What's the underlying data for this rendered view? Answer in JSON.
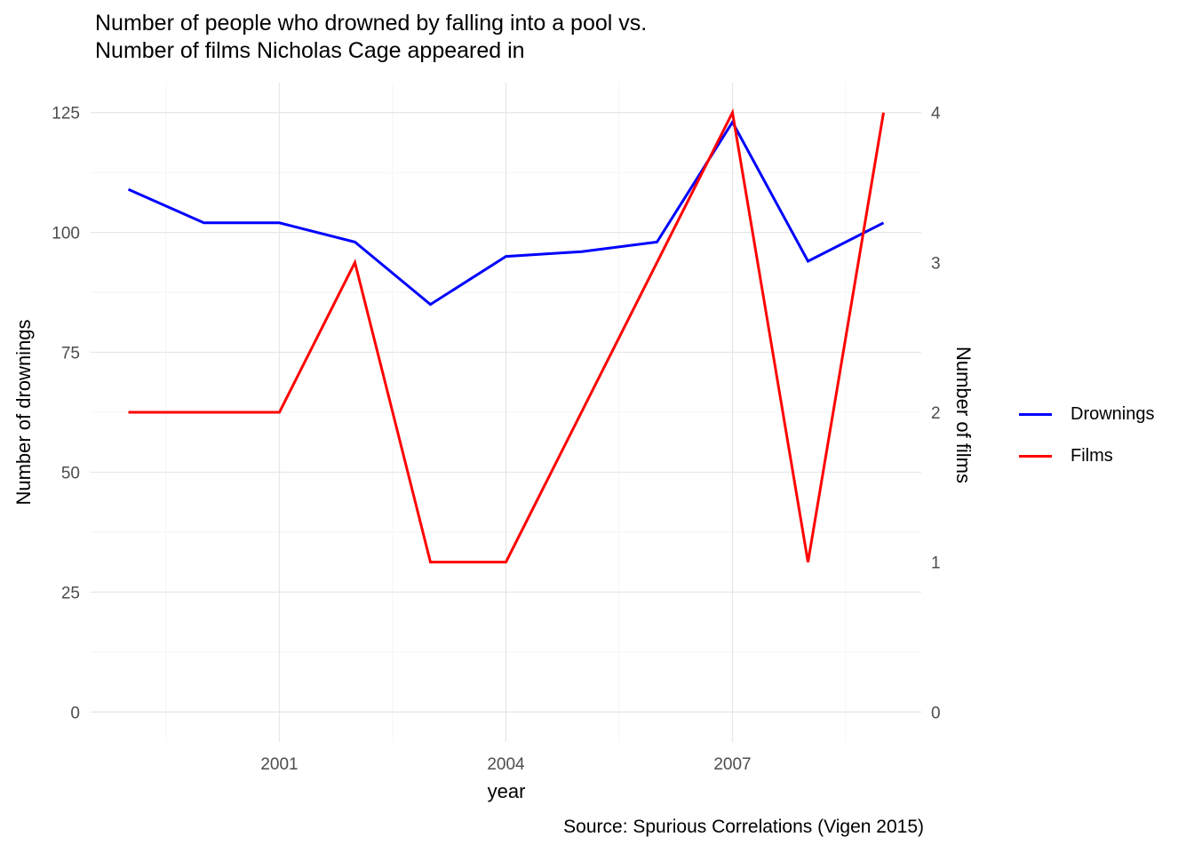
{
  "chart_data": {
    "type": "line",
    "title_lines": [
      "Number of people who drowned by falling into a pool vs.",
      "Number of films Nicholas Cage appeared in"
    ],
    "xlabel": "year",
    "ylabel_left": "Number of drownings",
    "ylabel_right": "Number of films",
    "caption": "Source: Spurious Correlations (Vigen 2015)",
    "x": [
      1999,
      2000,
      2001,
      2002,
      2003,
      2004,
      2005,
      2006,
      2007,
      2008,
      2009
    ],
    "series": [
      {
        "name": "Drownings",
        "axis": "left",
        "color": "#0000ff",
        "values": [
          109,
          102,
          102,
          98,
          85,
          95,
          96,
          98,
          123,
          94,
          102
        ]
      },
      {
        "name": "Films",
        "axis": "right",
        "color": "#ff0000",
        "values": [
          2,
          2,
          2,
          3,
          1,
          1,
          2,
          3,
          4,
          1,
          4
        ]
      }
    ],
    "x_ticks": [
      2001,
      2004,
      2007
    ],
    "x_minor_ticks": [
      1999.5,
      2002.5,
      2005.5,
      2008.5
    ],
    "y_left": {
      "lim": [
        0,
        125
      ],
      "ticks": [
        0,
        25,
        50,
        75,
        100,
        125
      ],
      "minor_ticks": [
        12.5,
        37.5,
        62.5,
        87.5,
        112.5
      ]
    },
    "y_right": {
      "lim": [
        0,
        4
      ],
      "ticks": [
        0,
        1,
        2,
        3,
        4
      ]
    },
    "grid": true,
    "legend_position": "right",
    "background": "#ffffff",
    "tick_text_color": "#4d4d4d"
  }
}
